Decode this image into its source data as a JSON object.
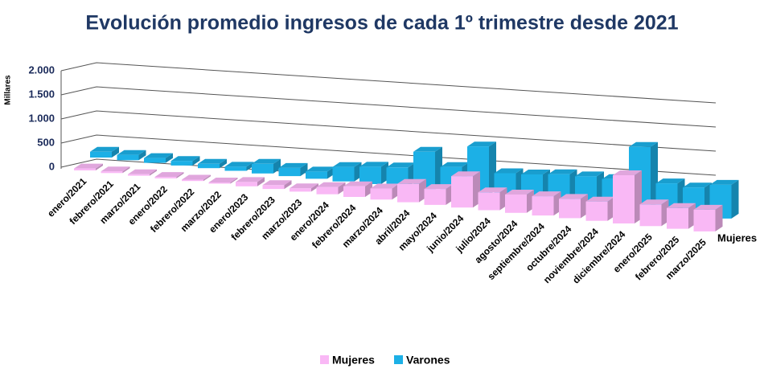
{
  "chart_data": {
    "type": "bar3d",
    "title": "Evolución promedio ingresos de cada 1º trimestre desde 2021",
    "y_label": "Millares",
    "depth_label": "Mujeres",
    "categories": [
      "enero/2021",
      "febrero/2021",
      "marzo/2021",
      "enero/2022",
      "febrero/2022",
      "marzo/2022",
      "enero/2023",
      "febrero/2023",
      "marzo/2023",
      "enero/2024",
      "febrero/2024",
      "marzo/2024",
      "abril/2024",
      "mayo/2024",
      "junio/2024",
      "julio/2024",
      "agosto/2024",
      "septiembre/2024",
      "octubre/2024",
      "noviembre/2024",
      "diciembre/2024",
      "enero/2025",
      "febrero/2025",
      "marzo/2025"
    ],
    "series": [
      {
        "name": "Mujeres",
        "color": "#f9b8f5",
        "values": [
          40,
          35,
          30,
          30,
          28,
          25,
          90,
          80,
          70,
          150,
          220,
          230,
          380,
          330,
          650,
          370,
          380,
          400,
          400,
          400,
          1000,
          450,
          430,
          450
        ]
      },
      {
        "name": "Varones",
        "color": "#1cb0e6",
        "values": [
          120,
          110,
          100,
          95,
          90,
          85,
          200,
          170,
          150,
          300,
          360,
          400,
          780,
          520,
          1000,
          500,
          530,
          590,
          600,
          600,
          1320,
          620,
          590,
          700
        ]
      }
    ],
    "ylim": [
      0,
      2000
    ],
    "yticks": [
      0,
      500,
      {
        "value": 1000,
        "label": "1.000"
      },
      {
        "value": 1500,
        "label": "1.500"
      },
      {
        "value": 2000,
        "label": "2.000"
      }
    ],
    "grid": true
  }
}
